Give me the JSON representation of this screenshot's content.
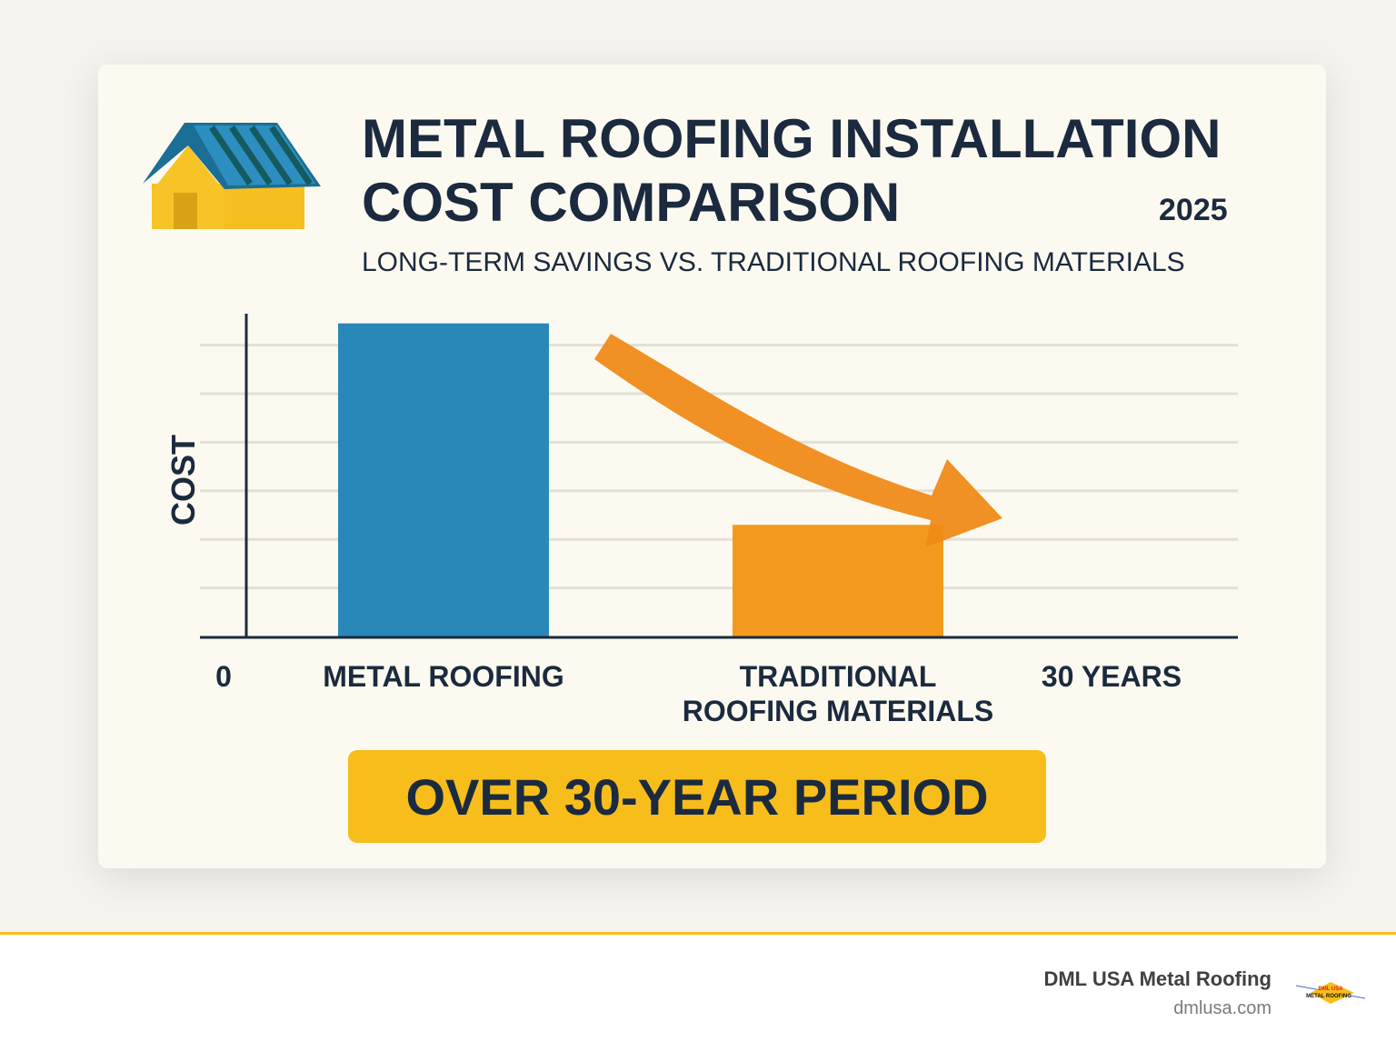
{
  "header": {
    "title_line1": "METAL ROOFING INSTALLATION",
    "title_line2": "COST COMPARISON",
    "year": "2025",
    "subtitle": "LONG-TERM SAVINGS VS. TRADITIONAL ROOFING MATERIALS"
  },
  "chart_data": {
    "type": "bar",
    "ylabel": "COST",
    "x_start_label": "0",
    "x_end_label": "30 YEARS",
    "categories": [
      "METAL ROOFING",
      "TRADITIONAL ROOFING MATERIALS"
    ],
    "category_lines": [
      [
        "METAL ROOFING"
      ],
      [
        "TRADITIONAL",
        "ROOFING MATERIALS"
      ]
    ],
    "values": [
      6.45,
      2.3
    ],
    "ylim": [
      0,
      6.65
    ],
    "grid": true,
    "colors": [
      "#2a88b8",
      "#f39a1e"
    ],
    "annotation": "downward arrow from metal roofing toward traditional roofing"
  },
  "banner": {
    "text": "OVER 30-YEAR PERIOD"
  },
  "footer": {
    "brand": "DML USA Metal Roofing",
    "url": "dmlusa.com",
    "logo_text": "DML USA METAL ROOFING"
  },
  "colors": {
    "navy": "#1b2a3e",
    "yellow": "#f7bd1a",
    "blue": "#2a88b8",
    "orange": "#f39a1e"
  }
}
